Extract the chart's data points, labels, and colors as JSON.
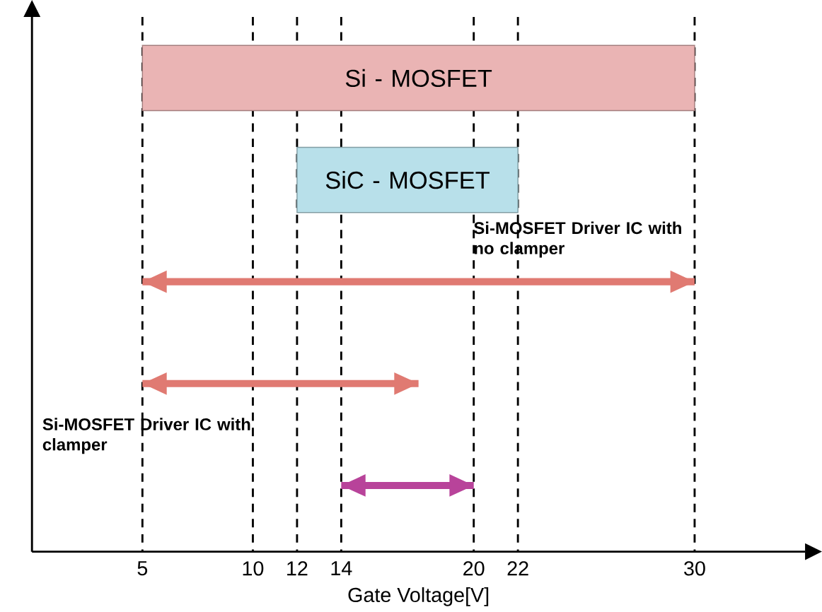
{
  "chart_data": {
    "type": "bar",
    "orientation": "horizontal",
    "xlabel": "Gate Voltage[V]",
    "categories": [
      "Si - MOSFET",
      "SiC - MOSFET",
      "Si-MOSFET Driver IC with no clamper",
      "Si-MOSFET Driver IC with clamper",
      null
    ],
    "base": [
      5,
      12,
      5,
      5,
      14
    ],
    "values": [
      25,
      10,
      25,
      12.5,
      6
    ],
    "colors": [
      "#eab4b4",
      "#b8e0ea",
      "#e07a72",
      "#e07a72",
      "#b8439a"
    ],
    "xlim": [
      0,
      35
    ],
    "xticks": [
      5,
      10,
      12,
      14,
      20,
      22,
      30
    ],
    "grid": "x",
    "tick_labels": "x"
  }
}
